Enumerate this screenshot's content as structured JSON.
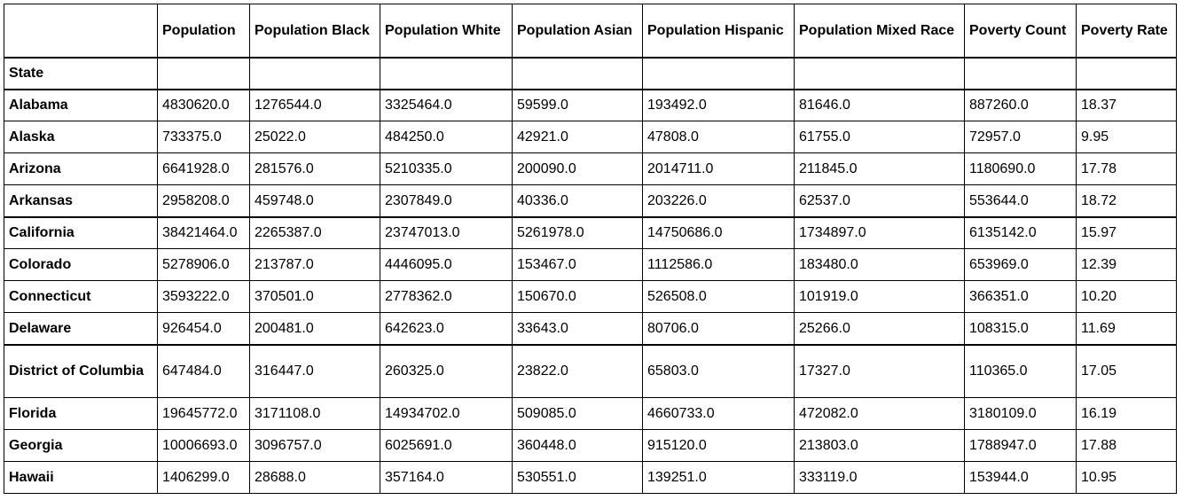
{
  "table": {
    "columns": [
      "",
      "Population",
      "Population Black",
      "Population White",
      "Population Asian",
      "Population Hispanic",
      "Population Mixed Race",
      "Poverty Count",
      "Poverty Rate"
    ],
    "index_label": "State",
    "rows": [
      {
        "state": "Alabama",
        "values": [
          "4830620.0",
          "1276544.0",
          "3325464.0",
          "59599.0",
          "193492.0",
          "81646.0",
          "887260.0",
          "18.37"
        ]
      },
      {
        "state": "Alaska",
        "values": [
          "733375.0",
          "25022.0",
          "484250.0",
          "42921.0",
          "47808.0",
          "61755.0",
          "72957.0",
          "9.95"
        ]
      },
      {
        "state": "Arizona",
        "values": [
          "6641928.0",
          "281576.0",
          "5210335.0",
          "200090.0",
          "2014711.0",
          "211845.0",
          "1180690.0",
          "17.78"
        ]
      },
      {
        "state": "Arkansas",
        "values": [
          "2958208.0",
          "459748.0",
          "2307849.0",
          "40336.0",
          "203226.0",
          "62537.0",
          "553644.0",
          "18.72"
        ]
      },
      {
        "state": "California",
        "values": [
          "38421464.0",
          "2265387.0",
          "23747013.0",
          "5261978.0",
          "14750686.0",
          "1734897.0",
          "6135142.0",
          "15.97"
        ]
      },
      {
        "state": "Colorado",
        "values": [
          "5278906.0",
          "213787.0",
          "4446095.0",
          "153467.0",
          "1112586.0",
          "183480.0",
          "653969.0",
          "12.39"
        ]
      },
      {
        "state": "Connecticut",
        "values": [
          "3593222.0",
          "370501.0",
          "2778362.0",
          "150670.0",
          "526508.0",
          "101919.0",
          "366351.0",
          "10.20"
        ]
      },
      {
        "state": "Delaware",
        "values": [
          "926454.0",
          "200481.0",
          "642623.0",
          "33643.0",
          "80706.0",
          "25266.0",
          "108315.0",
          "11.69"
        ]
      },
      {
        "state": "District of Columbia",
        "values": [
          "647484.0",
          "316447.0",
          "260325.0",
          "23822.0",
          "65803.0",
          "17327.0",
          "110365.0",
          "17.05"
        ]
      },
      {
        "state": "Florida",
        "values": [
          "19645772.0",
          "3171108.0",
          "14934702.0",
          "509085.0",
          "4660733.0",
          "472082.0",
          "3180109.0",
          "16.19"
        ]
      },
      {
        "state": "Georgia",
        "values": [
          "10006693.0",
          "3096757.0",
          "6025691.0",
          "360448.0",
          "915120.0",
          "213803.0",
          "1788947.0",
          "17.88"
        ]
      },
      {
        "state": "Hawaii",
        "values": [
          "1406299.0",
          "28688.0",
          "357164.0",
          "530551.0",
          "139251.0",
          "333119.0",
          "153944.0",
          "10.95"
        ]
      }
    ]
  }
}
